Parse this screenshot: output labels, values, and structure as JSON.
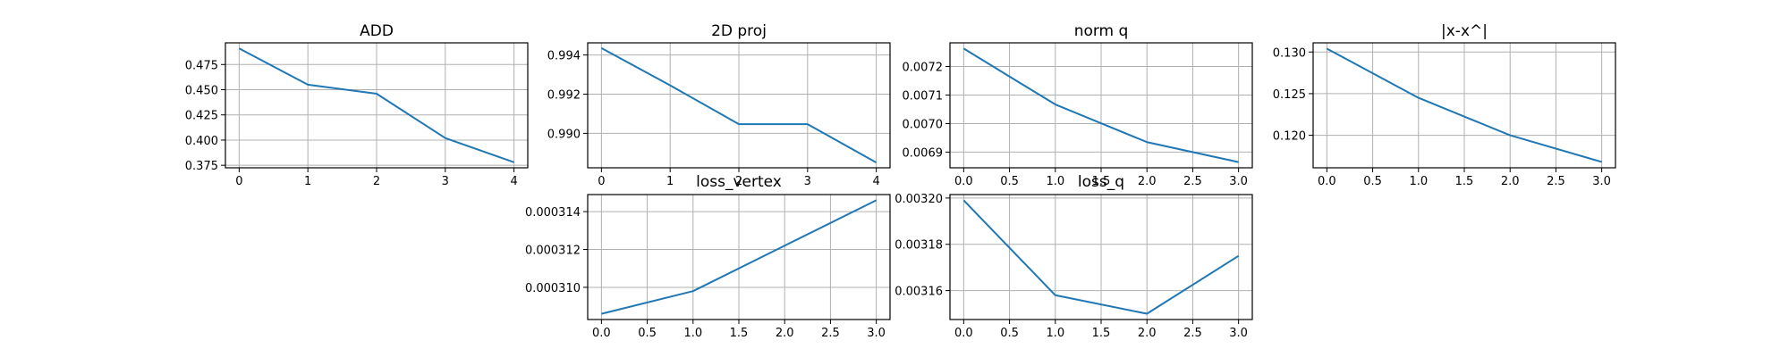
{
  "style": {
    "line_color": "#1f77b4",
    "grid": true
  },
  "chart_data": [
    {
      "type": "line",
      "title": "ADD",
      "x": [
        0,
        1,
        2,
        3,
        4
      ],
      "series": [
        {
          "values": [
            0.491,
            0.455,
            0.446,
            0.402,
            0.378
          ]
        }
      ],
      "xlim": [
        -0.2,
        4.2
      ],
      "ylim": [
        0.3725,
        0.4965
      ],
      "xticks": [
        0,
        1,
        2,
        3,
        4
      ],
      "xtick_labels": [
        "0",
        "1",
        "2",
        "3",
        "4"
      ],
      "yticks": [
        0.375,
        0.4,
        0.425,
        0.45,
        0.475
      ],
      "ytick_labels": [
        "0.375",
        "0.400",
        "0.425",
        "0.450",
        "0.475"
      ]
    },
    {
      "type": "line",
      "title": "2D proj",
      "x": [
        0,
        1,
        2,
        3,
        4
      ],
      "series": [
        {
          "values": [
            0.99435,
            0.99245,
            0.99047,
            0.99047,
            0.98851
          ]
        }
      ],
      "xlim": [
        -0.2,
        4.2
      ],
      "ylim": [
        0.98824,
        0.99462
      ],
      "xticks": [
        0,
        1,
        2,
        3,
        4
      ],
      "xtick_labels": [
        "0",
        "1",
        "2",
        "3",
        "4"
      ],
      "yticks": [
        0.99,
        0.992,
        0.994
      ],
      "ytick_labels": [
        "0.990",
        "0.992",
        "0.994"
      ]
    },
    {
      "type": "line",
      "title": "norm q",
      "x": [
        0,
        1,
        2,
        3
      ],
      "series": [
        {
          "values": [
            0.007263,
            0.007067,
            0.006935,
            0.006865
          ]
        }
      ],
      "xlim": [
        -0.15,
        3.15
      ],
      "ylim": [
        0.006845,
        0.007283
      ],
      "xticks": [
        0,
        0.5,
        1,
        1.5,
        2,
        2.5,
        3
      ],
      "xtick_labels": [
        "0.0",
        "0.5",
        "1.0",
        "1.5",
        "2.0",
        "2.5",
        "3.0"
      ],
      "yticks": [
        0.0069,
        0.007,
        0.0071,
        0.0072
      ],
      "ytick_labels": [
        "0.0069",
        "0.0070",
        "0.0071",
        "0.0072"
      ]
    },
    {
      "type": "line",
      "title": "|x-x^|",
      "x": [
        0,
        1,
        2,
        3
      ],
      "series": [
        {
          "values": [
            0.1304,
            0.1245,
            0.12,
            0.1168
          ]
        }
      ],
      "xlim": [
        -0.15,
        3.15
      ],
      "ylim": [
        0.1161,
        0.1311
      ],
      "xticks": [
        0,
        0.5,
        1,
        1.5,
        2,
        2.5,
        3
      ],
      "xtick_labels": [
        "0.0",
        "0.5",
        "1.0",
        "1.5",
        "2.0",
        "2.5",
        "3.0"
      ],
      "yticks": [
        0.12,
        0.125,
        0.13
      ],
      "ytick_labels": [
        "0.120",
        "0.125",
        "0.130"
      ]
    },
    {
      "type": "line",
      "title": "loss_vertex",
      "x": [
        0,
        1,
        2,
        3
      ],
      "series": [
        {
          "values": [
            0.0003086,
            0.0003098,
            0.0003122,
            0.0003146
          ]
        }
      ],
      "xlim": [
        -0.15,
        3.15
      ],
      "ylim": [
        0.0003083,
        0.0003149
      ],
      "xticks": [
        0,
        0.5,
        1,
        1.5,
        2,
        2.5,
        3
      ],
      "xtick_labels": [
        "0.0",
        "0.5",
        "1.0",
        "1.5",
        "2.0",
        "2.5",
        "3.0"
      ],
      "yticks": [
        0.00031,
        0.000312,
        0.000314
      ],
      "ytick_labels": [
        "0.000310",
        "0.000312",
        "0.000314"
      ]
    },
    {
      "type": "line",
      "title": "loss_q",
      "x": [
        0,
        1,
        2,
        3
      ],
      "series": [
        {
          "values": [
            0.003199,
            0.003158,
            0.00315,
            0.003175
          ]
        }
      ],
      "xlim": [
        -0.15,
        3.15
      ],
      "ylim": [
        0.0031475,
        0.0032015
      ],
      "xticks": [
        0,
        0.5,
        1,
        1.5,
        2,
        2.5,
        3
      ],
      "xtick_labels": [
        "0.0",
        "0.5",
        "1.0",
        "1.5",
        "2.0",
        "2.5",
        "3.0"
      ],
      "yticks": [
        0.00316,
        0.00318,
        0.0032
      ],
      "ytick_labels": [
        "0.00316",
        "0.00318",
        "0.00320"
      ]
    }
  ]
}
